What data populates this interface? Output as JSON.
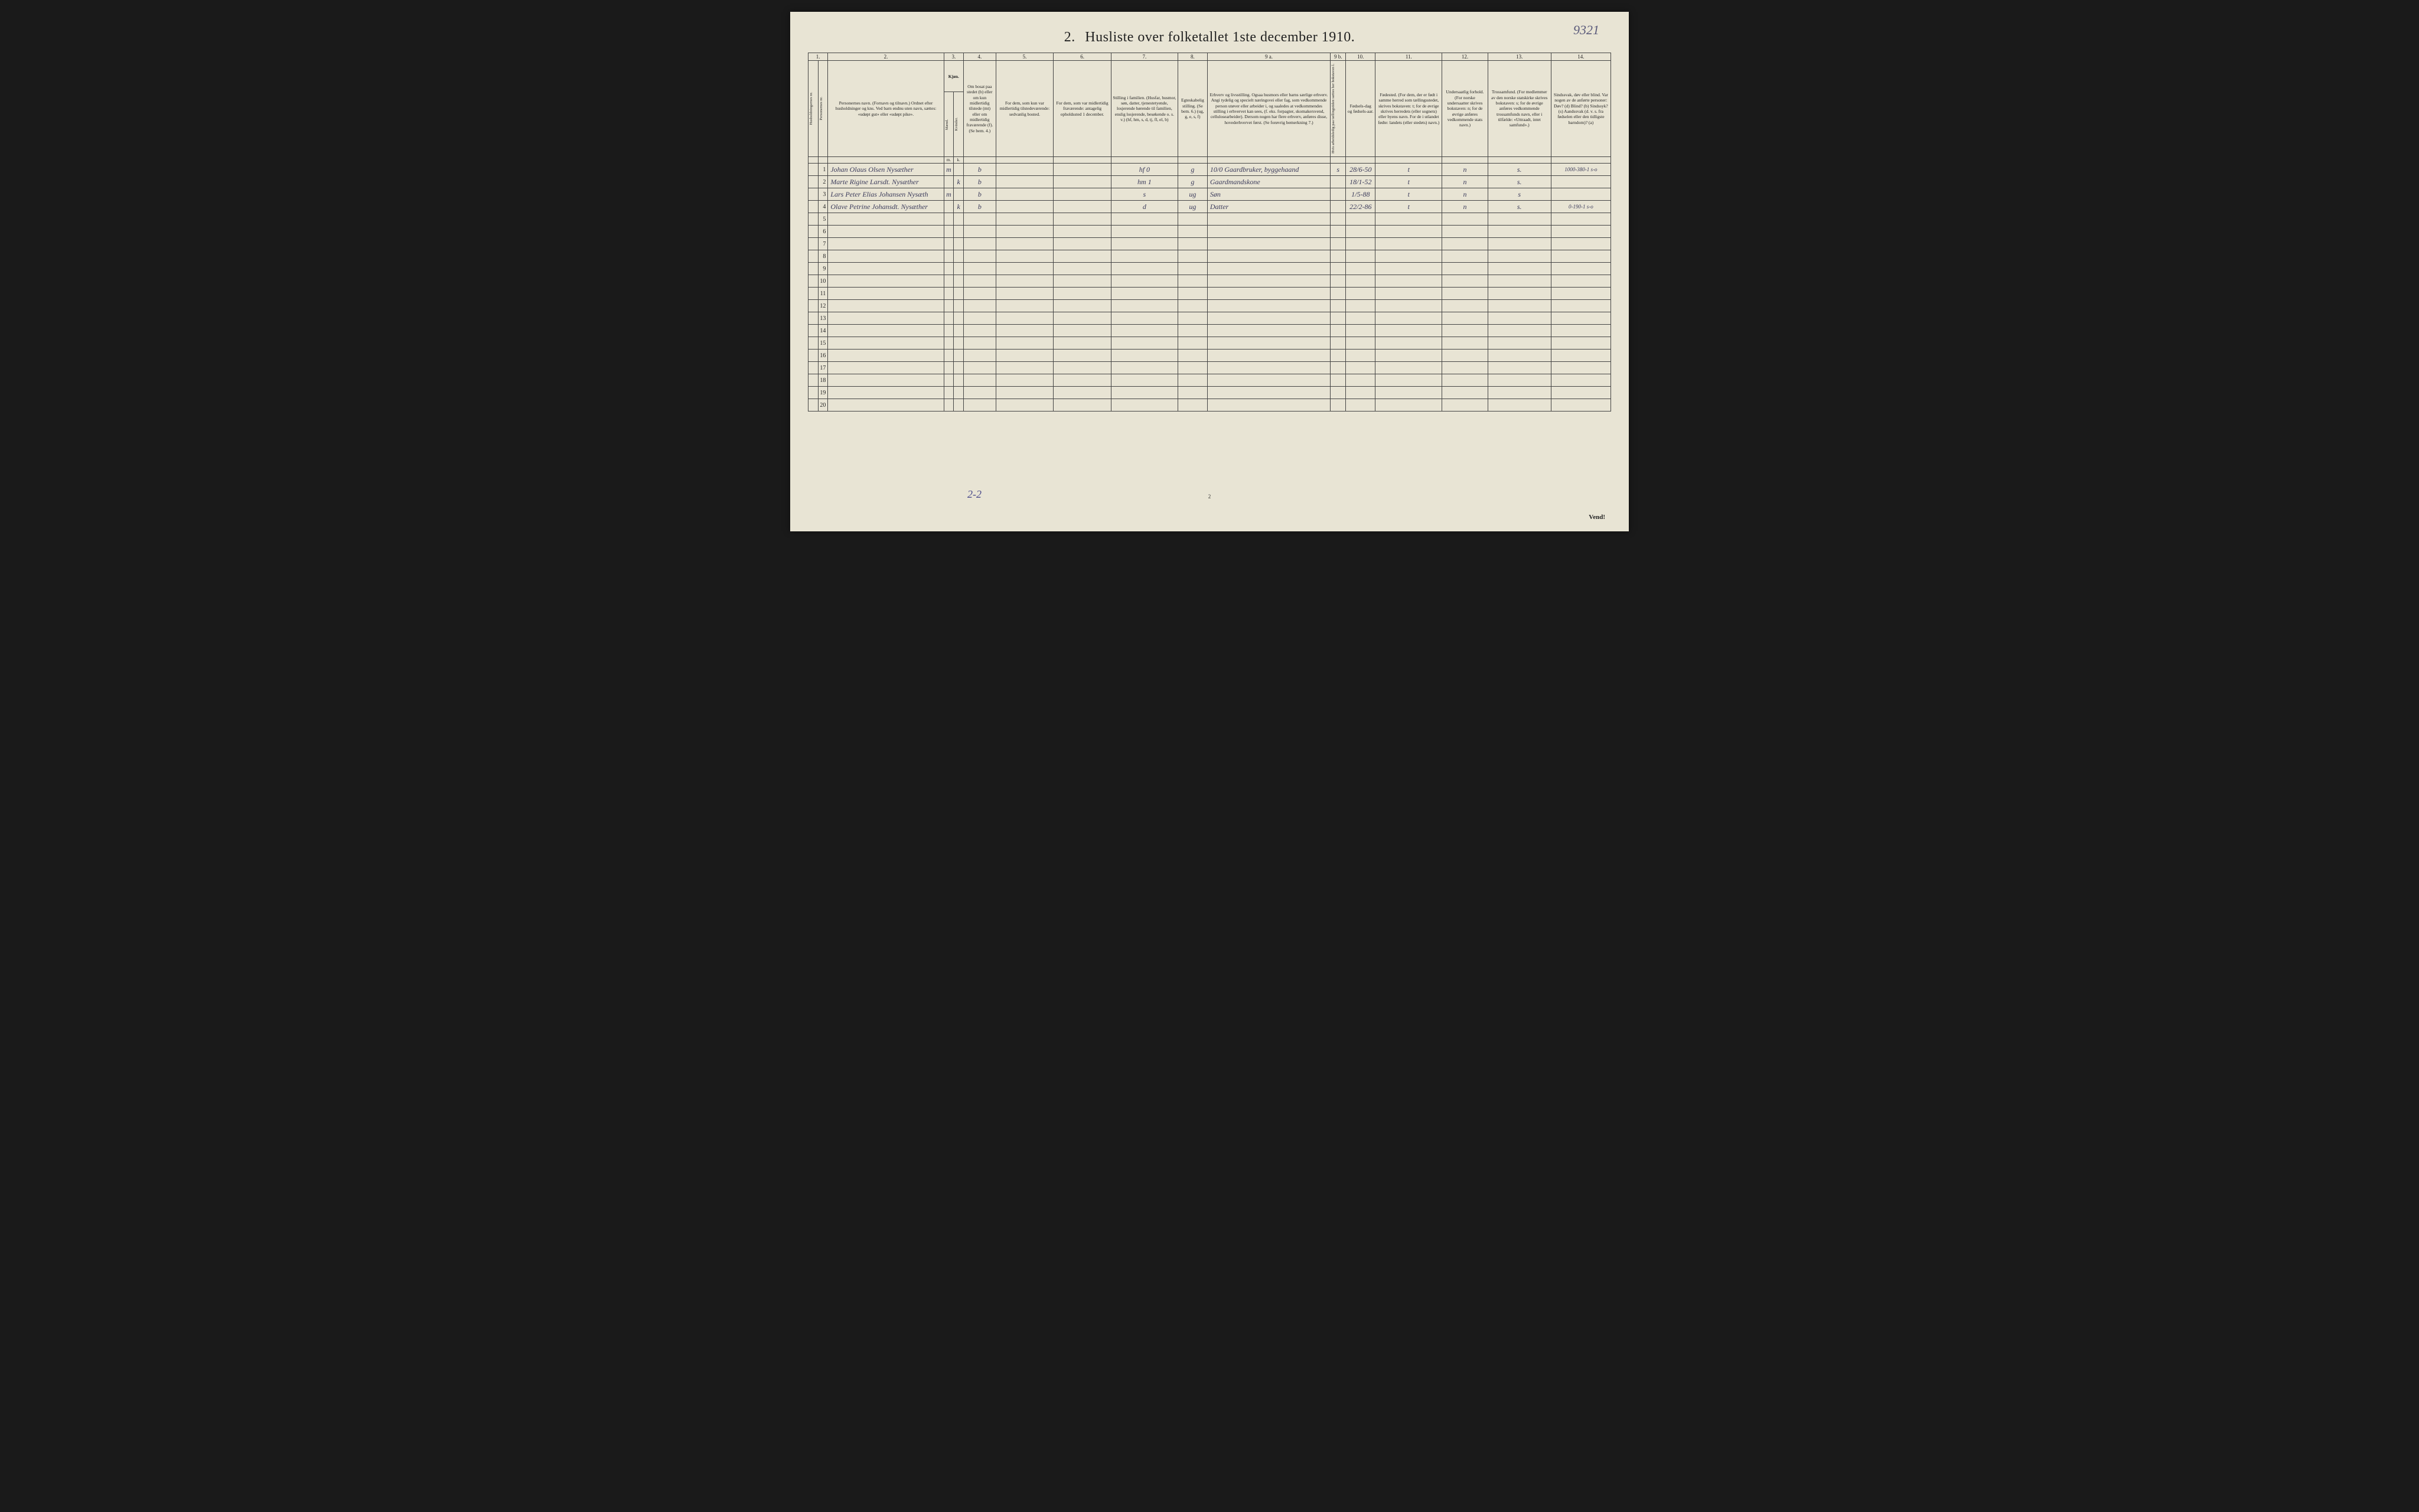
{
  "page": {
    "title_prefix": "2.",
    "title": "Husliste over folketallet 1ste december 1910.",
    "top_annotation": "9321",
    "bottom_annotation": "2-2",
    "page_number": "2",
    "vend": "Vend!"
  },
  "colnums": [
    "1.",
    "2.",
    "3.",
    "4.",
    "5.",
    "6.",
    "7.",
    "8.",
    "9 a.",
    "9 b.",
    "10.",
    "11.",
    "12.",
    "13.",
    "14."
  ],
  "headers": {
    "c1a": "Husholdningernes nr.",
    "c1b": "Personernes nr.",
    "c2": "Personernes navn.\n(Fornavn og tilnavn.)\nOrdnet efter husholdninger og kns.\nVed barn endnu uten navn, sættes: «udøpt gut» eller «udøpt pike».",
    "c3": "Kjøn.",
    "c3m": "Mænd.",
    "c3k": "Kvinder.",
    "c4": "Om bosat paa stedet (b) eller om kun midlertidig tilstede (mt) eller om midlertidig fraværende (f).\n(Se bem. 4.)",
    "c5": "For dem, som kun var midlertidig tilstedeværende:\nsedvanlig bosted.",
    "c6": "For dem, som var midlertidig fraværende:\nantagelig opholdssted 1 december.",
    "c7": "Stilling i familien.\n(Husfar, husmor, søn, datter, tjenestetyende, losjerende hørende til familien, enslig losjerende, besøkende o. s. v.)\n(hf, hm, s, d, tj, fl, el, b)",
    "c8": "Egteskabelig stilling.\n(Se bem. 6.)\n(ug, g, e, s, f)",
    "c9a": "Erhverv og livsstilling.\nOgsaa husmors eller barns særlige erhverv.\nAngi tydelig og specielt næringsvei eller fag, som vedkommende person utøver eller arbeider i, og saaledes at vedkommendes stilling i erhvervet kan sees, (f. eks. forpagter, skomakersvend, cellulosearbeider). Dersom nogen har flere erhverv, anføres disse, hovederhvervet først.\n(Se forøvrig bemerkning 7.)",
    "c9b": "Hvis arbeidsledig paa tællingstiden sættes her bokstaven l.",
    "c10": "Fødsels-dag og fødsels-aar.",
    "c11": "Fødested.\n(For dem, der er født i samme herred som tællingsstedet, skrives bokstaven: t; for de øvrige skrives herredets (eller sognets) eller byens navn.\nFor de i utlandet fødte: landets (eller stedets) navn.)",
    "c12": "Undersaatlig forhold.\n(For norske undersaatter skrives bokstaven: n; for de øvrige anføres vedkommende stats navn.)",
    "c13": "Trossamfund.\n(For medlemmer av den norske statskirke skrives bokstaven: s; for de øvrige anføres vedkommende trossamfunds navn, eller i tilfælde: «Uttraadt, intet samfund».)",
    "c14": "Sindssvak, døv eller blind.\nVar nogen av de anførte personer:\nDøv? (d)\nBlind? (b)\nSindssyk? (s)\nAandssvak (d. v. s. fra fødselen eller den tidligste barndom)? (a)"
  },
  "sub_mk": {
    "m": "m.",
    "k": "k."
  },
  "rows": [
    {
      "n": "1",
      "name": "Johan Olaus Olsen Nysæther",
      "sex_m": "m",
      "sex_k": "",
      "res": "b",
      "c7": "hf",
      "c7extra": "0",
      "c8": "g",
      "occ_pre": "10/0",
      "occ": "Gaardbruker, byggehaand",
      "c9b": "s",
      "dob": "28/6-50",
      "born": "t",
      "nat": "n",
      "rel": "s.",
      "c14": "1000-380-1 s-o"
    },
    {
      "n": "2",
      "name": "Marte Rigine Larsdt. Nysæther",
      "sex_m": "",
      "sex_k": "k",
      "res": "b",
      "c7": "hm",
      "c7extra": "1",
      "c8": "g",
      "occ": "Gaardmandskone",
      "dob": "18/1-52",
      "born": "t",
      "nat": "n",
      "rel": "s.",
      "c14": ""
    },
    {
      "n": "3",
      "name": "Lars Peter Elias Johansen Nysæth",
      "sex_m": "m",
      "sex_k": "",
      "res": "b",
      "c7": "s",
      "c8": "ug",
      "occ": "Søn",
      "dob": "1/5-88",
      "born": "t",
      "nat": "n",
      "rel": "s",
      "c14": ""
    },
    {
      "n": "4",
      "name": "Olave Petrine Johansdt. Nysæther",
      "sex_m": "",
      "sex_k": "k",
      "res": "b",
      "c7": "d",
      "c8": "ug",
      "occ": "Datter",
      "dob": "22/2-86",
      "born": "t",
      "nat": "n",
      "rel": "s.",
      "c14": "0-190-1 s-o"
    },
    {
      "n": "5"
    },
    {
      "n": "6"
    },
    {
      "n": "7"
    },
    {
      "n": "8"
    },
    {
      "n": "9"
    },
    {
      "n": "10"
    },
    {
      "n": "11"
    },
    {
      "n": "12"
    },
    {
      "n": "13"
    },
    {
      "n": "14"
    },
    {
      "n": "15"
    },
    {
      "n": "16"
    },
    {
      "n": "17"
    },
    {
      "n": "18"
    },
    {
      "n": "19"
    },
    {
      "n": "20"
    }
  ]
}
